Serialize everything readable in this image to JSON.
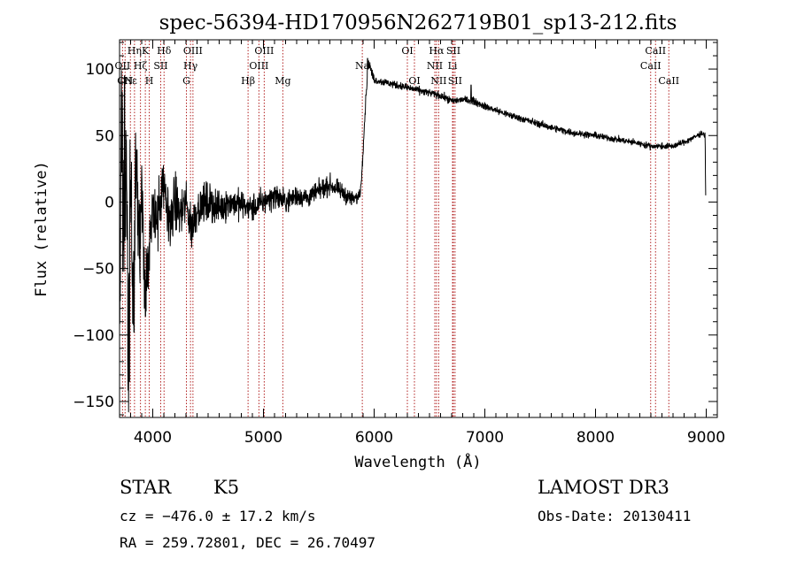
{
  "chart_data": {
    "type": "line",
    "title": "spec-56394-HD170956N262719B01_sp13-212.fits",
    "xlabel": "Wavelength (Å)",
    "ylabel": "Flux (relative)",
    "xlim": [
      3700,
      9100
    ],
    "ylim": [
      -162,
      122
    ],
    "xticks": [
      4000,
      5000,
      6000,
      7000,
      8000,
      9000
    ],
    "xtick_labels": [
      "4000",
      "5000",
      "6000",
      "7000",
      "8000",
      "9000"
    ],
    "yticks": [
      -150,
      -100,
      -50,
      0,
      50,
      100
    ],
    "ytick_labels": [
      "−150",
      "−100",
      "−50",
      "0",
      "50",
      "100"
    ],
    "line_color": "#000000",
    "marker_color": "#b22222",
    "lines": [
      {
        "wl": 3727,
        "label": "OII",
        "row": 1
      },
      {
        "wl": 3750,
        "label": "CN",
        "row": 2
      },
      {
        "wl": 3798,
        "label": "Hε",
        "row": 2
      },
      {
        "wl": 3835,
        "label": "Hη",
        "row": 0
      },
      {
        "wl": 3889,
        "label": "Hζ",
        "row": 1
      },
      {
        "wl": 3933,
        "label": "K",
        "row": 0
      },
      {
        "wl": 3968,
        "label": "H",
        "row": 2
      },
      {
        "wl": 4072,
        "label": "SII",
        "row": 1
      },
      {
        "wl": 4102,
        "label": "Hδ",
        "row": 0
      },
      {
        "wl": 4304,
        "label": "G",
        "row": 2
      },
      {
        "wl": 4341,
        "label": "Hγ",
        "row": 1
      },
      {
        "wl": 4363,
        "label": "OIII",
        "row": 0
      },
      {
        "wl": 4861,
        "label": "Hβ",
        "row": 2
      },
      {
        "wl": 4959,
        "label": "OIII",
        "row": 1
      },
      {
        "wl": 5007,
        "label": "OIII",
        "row": 0
      },
      {
        "wl": 5175,
        "label": "Mg",
        "row": 2
      },
      {
        "wl": 5893,
        "label": "Na",
        "row": 1
      },
      {
        "wl": 6300,
        "label": "OI",
        "row": 0
      },
      {
        "wl": 6364,
        "label": "OI",
        "row": 2
      },
      {
        "wl": 6548,
        "label": "NII",
        "row": 1
      },
      {
        "wl": 6563,
        "label": "Hα",
        "row": 0
      },
      {
        "wl": 6583,
        "label": "NII",
        "row": 2
      },
      {
        "wl": 6708,
        "label": "Li",
        "row": 1
      },
      {
        "wl": 6716,
        "label": "SII",
        "row": 0
      },
      {
        "wl": 6731,
        "label": "SII",
        "row": 2
      },
      {
        "wl": 8498,
        "label": "CaII",
        "row": 1
      },
      {
        "wl": 8542,
        "label": "CaII",
        "row": 0
      },
      {
        "wl": 8662,
        "label": "CaII",
        "row": 2
      }
    ],
    "spectrum_anchors": [
      [
        3700,
        -75
      ],
      [
        3720,
        85
      ],
      [
        3740,
        -40
      ],
      [
        3760,
        60
      ],
      [
        3780,
        -140
      ],
      [
        3800,
        15
      ],
      [
        3820,
        -90
      ],
      [
        3850,
        40
      ],
      [
        3880,
        -40
      ],
      [
        3900,
        20
      ],
      [
        3930,
        -60
      ],
      [
        3970,
        -45
      ],
      [
        4000,
        -5
      ],
      [
        4050,
        -10
      ],
      [
        4100,
        10
      ],
      [
        4150,
        -15
      ],
      [
        4200,
        0
      ],
      [
        4250,
        -10
      ],
      [
        4300,
        0
      ],
      [
        4350,
        -20
      ],
      [
        4400,
        -5
      ],
      [
        4500,
        0
      ],
      [
        4600,
        -5
      ],
      [
        4700,
        0
      ],
      [
        4800,
        -2
      ],
      [
        4900,
        -5
      ],
      [
        5000,
        0
      ],
      [
        5100,
        5
      ],
      [
        5200,
        0
      ],
      [
        5300,
        5
      ],
      [
        5400,
        3
      ],
      [
        5500,
        8
      ],
      [
        5600,
        13
      ],
      [
        5700,
        8
      ],
      [
        5800,
        2
      ],
      [
        5850,
        3
      ],
      [
        5880,
        10
      ],
      [
        5900,
        40
      ],
      [
        5930,
        85
      ],
      [
        5950,
        105
      ],
      [
        6000,
        92
      ],
      [
        6100,
        90
      ],
      [
        6200,
        88
      ],
      [
        6300,
        86
      ],
      [
        6400,
        84
      ],
      [
        6500,
        82
      ],
      [
        6600,
        80
      ],
      [
        6700,
        76
      ],
      [
        6800,
        77
      ],
      [
        6900,
        76
      ],
      [
        7000,
        72
      ],
      [
        7200,
        66
      ],
      [
        7400,
        61
      ],
      [
        7600,
        56
      ],
      [
        7800,
        52
      ],
      [
        8000,
        50
      ],
      [
        8200,
        47
      ],
      [
        8400,
        44
      ],
      [
        8500,
        42
      ],
      [
        8700,
        42
      ],
      [
        8800,
        45
      ],
      [
        8900,
        49
      ],
      [
        8960,
        52
      ],
      [
        8990,
        50
      ],
      [
        8995,
        5
      ]
    ],
    "spectrum_spikes": [
      [
        5940,
        108
      ],
      [
        5955,
        103
      ],
      [
        6875,
        88
      ],
      [
        3745,
        95
      ],
      [
        3790,
        -135
      ],
      [
        3830,
        -98
      ]
    ],
    "noise_profile": [
      [
        3700,
        45
      ],
      [
        3800,
        40
      ],
      [
        3900,
        25
      ],
      [
        4000,
        18
      ],
      [
        4300,
        12
      ],
      [
        4700,
        8
      ],
      [
        5200,
        6
      ],
      [
        5800,
        4
      ],
      [
        6000,
        2
      ],
      [
        9000,
        1.5
      ]
    ]
  },
  "info": {
    "class": "STAR",
    "subclass": "K5",
    "survey": "LAMOST DR3",
    "cz": "cz = −476.0 ± 17.2 km/s",
    "obs_date": "Obs-Date: 20130411",
    "coords": "RA = 259.72801, DEC =  26.70497"
  }
}
